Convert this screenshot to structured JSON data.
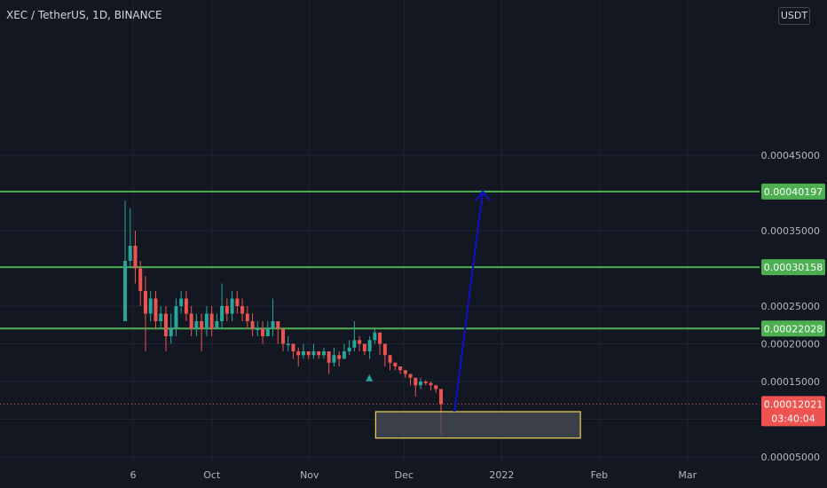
{
  "header": {
    "symbol_line": "XEC / TetherUS, 1D, BINANCE"
  },
  "currency_button": "USDT",
  "colors": {
    "background": "#131722",
    "grid": "#1f2330",
    "up": "#26a69a",
    "down": "#ef5350",
    "level_line": "#4caf50",
    "arrow": "#1010c8",
    "zone_border": "#f0d35a",
    "zone_fill": "#4a4d58"
  },
  "chart_data": {
    "type": "candlestick",
    "y_ticks": [
      "0.00045000",
      "0.00035000",
      "0.00025000",
      "0.00020000",
      "0.00015000",
      "0.00010000",
      "0.00005000"
    ],
    "x_ticks": [
      "6",
      "Oct",
      "Nov",
      "Dec",
      "2022",
      "Feb",
      "Mar"
    ],
    "ylim": [
      4e-05,
      0.00047
    ],
    "levels": [
      {
        "value": 0.00040197,
        "label": "0.00040197"
      },
      {
        "value": 0.00030158,
        "label": "0.00030158"
      },
      {
        "value": 0.00022028,
        "label": "0.00022028"
      }
    ],
    "last_price": {
      "value": 0.00012021,
      "label": "0.00012021",
      "countdown": "03:40:04"
    },
    "zone": {
      "x_start": "2021-11-22",
      "x_end": "2022-01-26",
      "y_low": 7.5e-05,
      "y_high": 0.00011
    },
    "arrow": {
      "from": [
        "2021-12-17",
        0.00011
      ],
      "to": [
        "2021-12-26",
        0.00040197
      ]
    },
    "signal_marker": {
      "x": "2021-11-20",
      "value": 0.000155
    },
    "candles": [
      [
        0.00023,
        0.00031,
        0.00039,
        0.00023
      ],
      [
        0.00031,
        0.00033,
        0.00038,
        0.0003
      ],
      [
        0.00033,
        0.0003,
        0.00035,
        0.00028
      ],
      [
        0.0003,
        0.00027,
        0.00031,
        0.00025
      ],
      [
        0.00027,
        0.00024,
        0.00029,
        0.00019
      ],
      [
        0.00024,
        0.00026,
        0.00027,
        0.00023
      ],
      [
        0.00026,
        0.00023,
        0.00027,
        0.00022
      ],
      [
        0.00023,
        0.00024,
        0.00025,
        0.00022
      ],
      [
        0.00024,
        0.00021,
        0.00025,
        0.00019
      ],
      [
        0.00021,
        0.00022,
        0.00024,
        0.0002
      ],
      [
        0.00022,
        0.00025,
        0.00026,
        0.00021
      ],
      [
        0.00025,
        0.00026,
        0.00027,
        0.00024
      ],
      [
        0.00026,
        0.00024,
        0.00027,
        0.00023
      ],
      [
        0.00024,
        0.00022,
        0.00025,
        0.00021
      ],
      [
        0.00022,
        0.00023,
        0.00024,
        0.00021
      ],
      [
        0.00023,
        0.00022,
        0.00024,
        0.00019
      ],
      [
        0.00022,
        0.00024,
        0.00025,
        0.00021
      ],
      [
        0.00024,
        0.00022,
        0.00025,
        0.00021
      ],
      [
        0.00022,
        0.00023,
        0.00024,
        0.00022
      ],
      [
        0.00023,
        0.00025,
        0.00028,
        0.00022
      ],
      [
        0.00025,
        0.00024,
        0.00026,
        0.00023
      ],
      [
        0.00024,
        0.00026,
        0.00027,
        0.00023
      ],
      [
        0.00026,
        0.00025,
        0.00027,
        0.00024
      ],
      [
        0.00025,
        0.00024,
        0.00026,
        0.00023
      ],
      [
        0.00024,
        0.00023,
        0.00025,
        0.00022
      ],
      [
        0.00023,
        0.00022,
        0.00024,
        0.00021
      ],
      [
        0.00022,
        0.00022,
        0.00023,
        0.00021
      ],
      [
        0.00022,
        0.00021,
        0.00023,
        0.0002
      ],
      [
        0.00021,
        0.00022,
        0.00023,
        0.00021
      ],
      [
        0.00022,
        0.00023,
        0.00026,
        0.00021
      ],
      [
        0.00023,
        0.00022,
        0.00023,
        0.0002
      ],
      [
        0.00022,
        0.0002,
        0.00022,
        0.00019
      ],
      [
        0.0002,
        0.0002,
        0.00021,
        0.00019
      ],
      [
        0.0002,
        0.00019,
        0.0002,
        0.00018
      ],
      [
        0.00019,
        0.000185,
        0.000195,
        0.00017
      ],
      [
        0.000185,
        0.00019,
        0.0002,
        0.00018
      ],
      [
        0.00019,
        0.000185,
        0.00019,
        0.00018
      ],
      [
        0.000185,
        0.00019,
        0.0002,
        0.00018
      ],
      [
        0.00019,
        0.000185,
        0.00019,
        0.00018
      ],
      [
        0.000185,
        0.00019,
        0.000195,
        0.00018
      ],
      [
        0.00019,
        0.000175,
        0.00019,
        0.00016
      ],
      [
        0.000175,
        0.000185,
        0.000195,
        0.00017
      ],
      [
        0.000185,
        0.00018,
        0.00019,
        0.00017
      ],
      [
        0.00018,
        0.00019,
        0.0002,
        0.00018
      ],
      [
        0.00019,
        0.000195,
        0.000205,
        0.000185
      ],
      [
        0.000195,
        0.000205,
        0.00023,
        0.00019
      ],
      [
        0.000205,
        0.0002,
        0.00021,
        0.00019
      ],
      [
        0.0002,
        0.00019,
        0.0002,
        0.000185
      ],
      [
        0.00019,
        0.000205,
        0.00021,
        0.00018
      ],
      [
        0.000205,
        0.000215,
        0.00022,
        0.0002
      ],
      [
        0.000215,
        0.0002,
        0.000215,
        0.000185
      ],
      [
        0.0002,
        0.000185,
        0.0002,
        0.00017
      ],
      [
        0.000185,
        0.000175,
        0.000185,
        0.000165
      ],
      [
        0.000175,
        0.00017,
        0.000175,
        0.000165
      ],
      [
        0.00017,
        0.000165,
        0.00017,
        0.00016
      ],
      [
        0.000165,
        0.00016,
        0.000165,
        0.000155
      ],
      [
        0.00016,
        0.000155,
        0.00016,
        0.000145
      ],
      [
        0.000155,
        0.000145,
        0.000155,
        0.00013
      ],
      [
        0.000145,
        0.00015,
        0.000155,
        0.00014
      ],
      [
        0.00015,
        0.000148,
        0.000152,
        0.000145
      ],
      [
        0.000148,
        0.000145,
        0.00015,
        0.000138
      ],
      [
        0.000145,
        0.00014,
        0.000145,
        0.000135
      ],
      [
        0.00014,
        0.00012,
        0.00014,
        8e-05
      ]
    ]
  }
}
